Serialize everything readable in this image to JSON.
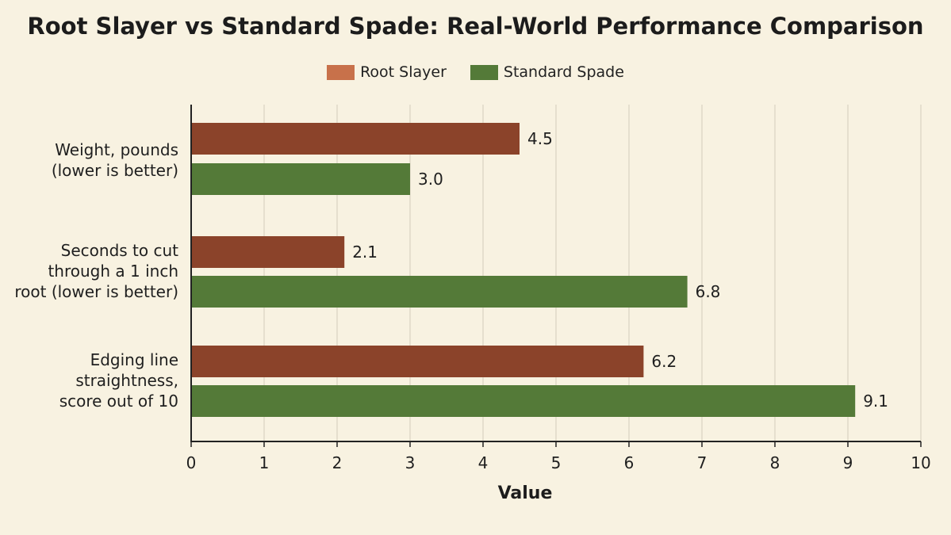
{
  "chart_data": {
    "type": "bar",
    "orientation": "horizontal",
    "title": "Root Slayer vs Standard Spade: Real-World Performance Comparison",
    "categories": [
      "Weight, pounds (lower is better)",
      "Seconds to cut through a 1 inch root (lower is better)",
      "Edging line straightness, score out of 10"
    ],
    "category_lines": [
      [
        "Weight, pounds",
        "(lower is better)"
      ],
      [
        "Seconds to cut",
        "through a 1 inch",
        "root (lower is better)"
      ],
      [
        "Edging line",
        "straightness,",
        "score out of 10"
      ]
    ],
    "series": [
      {
        "name": "Root Slayer",
        "color": "#8b432a",
        "legend_color": "#c8714a",
        "values": [
          4.5,
          2.1,
          6.2
        ],
        "labels": [
          "4.5",
          "2.1",
          "6.2"
        ]
      },
      {
        "name": "Standard Spade",
        "color": "#547a38",
        "legend_color": "#547a38",
        "values": [
          3.0,
          6.8,
          9.1
        ],
        "labels": [
          "3.0",
          "6.8",
          "9.1"
        ]
      }
    ],
    "xlabel": "Value",
    "ylabel": "",
    "xlim": [
      0,
      10
    ],
    "xticks": [
      "0",
      "1",
      "2",
      "3",
      "4",
      "5",
      "6",
      "7",
      "8",
      "9",
      "10"
    ],
    "grid": true,
    "legend_position": "top-center"
  }
}
